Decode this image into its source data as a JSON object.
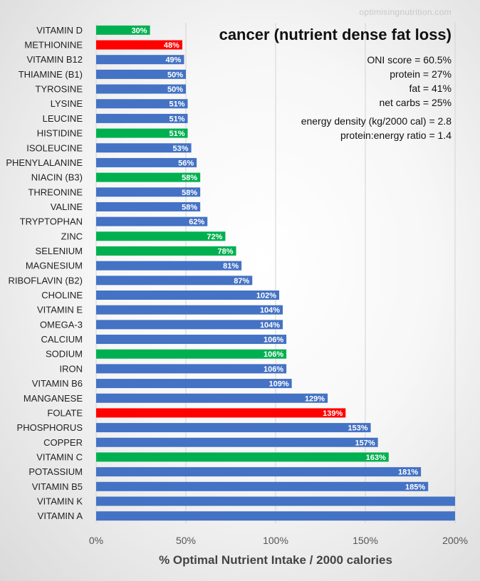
{
  "watermark": "optimisingnutrition.com",
  "title": "cancer (nutrient dense fat loss)",
  "stats": {
    "oni_score": "ONI score = 60.5%",
    "protein": "protein = 27%",
    "fat": "fat = 41%",
    "net_carbs": "net carbs = 25%",
    "energy_density": "energy density (kg/2000 cal)  = 2.8",
    "protein_energy_ratio": "protein:energy ratio = 1.4"
  },
  "colors": {
    "blue": "#4472C4",
    "green": "#00B050",
    "red": "#FF0000",
    "grid": "#d4d4d4",
    "axis_text": "#555555"
  },
  "chart_data": {
    "type": "bar",
    "orientation": "horizontal",
    "title": "cancer (nutrient dense fat loss)",
    "xlabel": "% Optimal Nutrient Intake / 2000 calories",
    "ylabel": "",
    "xlim": [
      0,
      200
    ],
    "xticks": [
      "0%",
      "50%",
      "100%",
      "150%",
      "200%"
    ],
    "xtick_values": [
      0,
      50,
      100,
      150,
      200
    ],
    "categories": [
      "VITAMIN D",
      "METHIONINE",
      "VITAMIN B12",
      "THIAMINE (B1)",
      "TYROSINE",
      "LYSINE",
      "LEUCINE",
      "HISTIDINE",
      "ISOLEUCINE",
      "PHENYLALANINE",
      "NIACIN (B3)",
      "THREONINE",
      "VALINE",
      "TRYPTOPHAN",
      "ZINC",
      "SELENIUM",
      "MAGNESIUM",
      "RIBOFLAVIN (B2)",
      "CHOLINE",
      "VITAMIN E",
      "OMEGA-3",
      "CALCIUM",
      "SODIUM",
      "IRON",
      "VITAMIN B6",
      "MANGANESE",
      "FOLATE",
      "PHOSPHORUS",
      "COPPER",
      "VITAMIN C",
      "POTASSIUM",
      "VITAMIN B5",
      "VITAMIN K",
      "VITAMIN A"
    ],
    "values": [
      30,
      48,
      49,
      50,
      50,
      51,
      51,
      51,
      53,
      56,
      58,
      58,
      58,
      62,
      72,
      78,
      81,
      87,
      102,
      104,
      104,
      106,
      106,
      106,
      109,
      129,
      139,
      153,
      157,
      163,
      181,
      185,
      200,
      200
    ],
    "labels": [
      "30%",
      "48%",
      "49%",
      "50%",
      "50%",
      "51%",
      "51%",
      "51%",
      "53%",
      "56%",
      "58%",
      "58%",
      "58%",
      "62%",
      "72%",
      "78%",
      "81%",
      "87%",
      "102%",
      "104%",
      "104%",
      "106%",
      "106%",
      "106%",
      "109%",
      "129%",
      "139%",
      "153%",
      "157%",
      "163%",
      "181%",
      "185%",
      "",
      ""
    ],
    "bar_colors": [
      "green",
      "red",
      "blue",
      "blue",
      "blue",
      "blue",
      "blue",
      "green",
      "blue",
      "blue",
      "green",
      "blue",
      "blue",
      "blue",
      "green",
      "green",
      "blue",
      "blue",
      "blue",
      "blue",
      "blue",
      "blue",
      "green",
      "blue",
      "blue",
      "blue",
      "red",
      "blue",
      "blue",
      "green",
      "blue",
      "blue",
      "blue",
      "blue"
    ],
    "grid": true
  }
}
